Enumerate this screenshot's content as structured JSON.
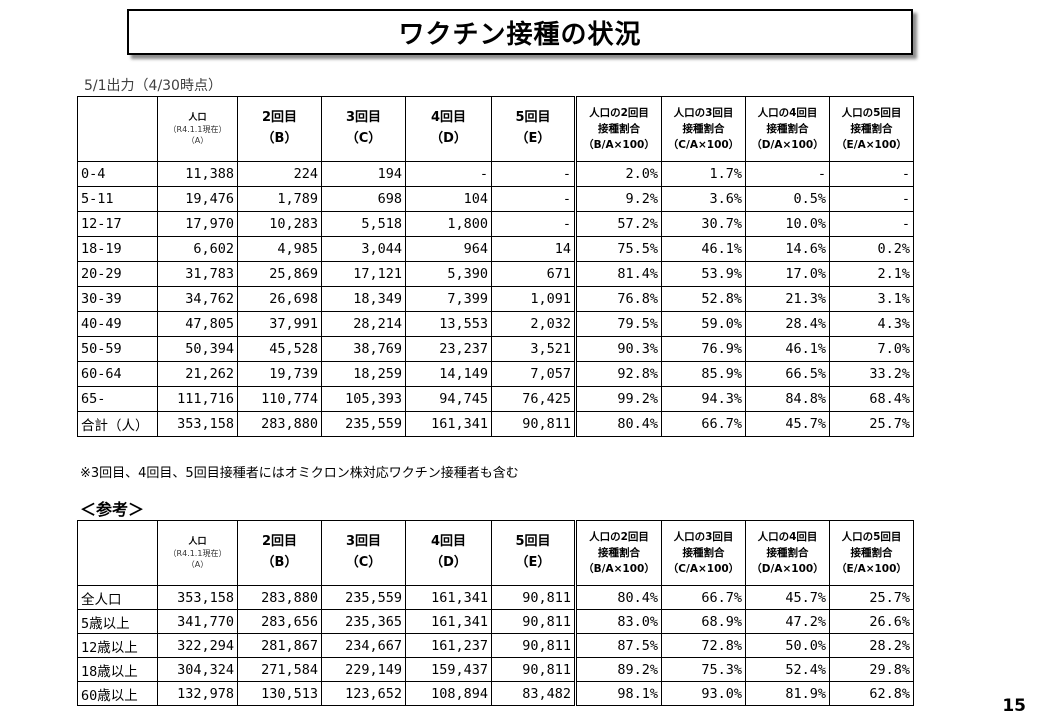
{
  "title": "ワクチン接種の状況",
  "as_of": "5/1出力（4/30時点）",
  "note": "※3回目、4回目、5回目接種者にはオミクロン株対応ワクチン接種者も含む",
  "ref_heading": "＜参考＞",
  "page_number": "15",
  "headers": {
    "pop": [
      "人口",
      "（R4.1.1現在）",
      "（A）"
    ],
    "doses": [
      {
        "l1": "2回目",
        "l2": "（B）"
      },
      {
        "l1": "3回目",
        "l2": "（C）"
      },
      {
        "l1": "4回目",
        "l2": "（D）"
      },
      {
        "l1": "5回目",
        "l2": "（E）"
      }
    ],
    "rates": [
      [
        "人口の2回目",
        "接種割合",
        "（B/A×100）"
      ],
      [
        "人口の3回目",
        "接種割合",
        "（C/A×100）"
      ],
      [
        "人口の4回目",
        "接種割合",
        "（D/A×100）"
      ],
      [
        "人口の5回目",
        "接種割合",
        "（E/A×100）"
      ]
    ]
  },
  "main_rows": [
    [
      "0-4",
      "11,388",
      "224",
      "194",
      "-",
      "-",
      "2.0%",
      "1.7%",
      "-",
      "-"
    ],
    [
      "5-11",
      "19,476",
      "1,789",
      "698",
      "104",
      "-",
      "9.2%",
      "3.6%",
      "0.5%",
      "-"
    ],
    [
      "12-17",
      "17,970",
      "10,283",
      "5,518",
      "1,800",
      "-",
      "57.2%",
      "30.7%",
      "10.0%",
      "-"
    ],
    [
      "18-19",
      "6,602",
      "4,985",
      "3,044",
      "964",
      "14",
      "75.5%",
      "46.1%",
      "14.6%",
      "0.2%"
    ],
    [
      "20-29",
      "31,783",
      "25,869",
      "17,121",
      "5,390",
      "671",
      "81.4%",
      "53.9%",
      "17.0%",
      "2.1%"
    ],
    [
      "30-39",
      "34,762",
      "26,698",
      "18,349",
      "7,399",
      "1,091",
      "76.8%",
      "52.8%",
      "21.3%",
      "3.1%"
    ],
    [
      "40-49",
      "47,805",
      "37,991",
      "28,214",
      "13,553",
      "2,032",
      "79.5%",
      "59.0%",
      "28.4%",
      "4.3%"
    ],
    [
      "50-59",
      "50,394",
      "45,528",
      "38,769",
      "23,237",
      "3,521",
      "90.3%",
      "76.9%",
      "46.1%",
      "7.0%"
    ],
    [
      "60-64",
      "21,262",
      "19,739",
      "18,259",
      "14,149",
      "7,057",
      "92.8%",
      "85.9%",
      "66.5%",
      "33.2%"
    ],
    [
      "65-",
      "111,716",
      "110,774",
      "105,393",
      "94,745",
      "76,425",
      "99.2%",
      "94.3%",
      "84.8%",
      "68.4%"
    ],
    [
      "合計（人）",
      "353,158",
      "283,880",
      "235,559",
      "161,341",
      "90,811",
      "80.4%",
      "66.7%",
      "45.7%",
      "25.7%"
    ]
  ],
  "ref_rows": [
    [
      "全人口",
      "353,158",
      "283,880",
      "235,559",
      "161,341",
      "90,811",
      "80.4%",
      "66.7%",
      "45.7%",
      "25.7%"
    ],
    [
      "5歳以上",
      "341,770",
      "283,656",
      "235,365",
      "161,341",
      "90,811",
      "83.0%",
      "68.9%",
      "47.2%",
      "26.6%"
    ],
    [
      "12歳以上",
      "322,294",
      "281,867",
      "234,667",
      "161,237",
      "90,811",
      "87.5%",
      "72.8%",
      "50.0%",
      "28.2%"
    ],
    [
      "18歳以上",
      "304,324",
      "271,584",
      "229,149",
      "159,437",
      "90,811",
      "89.2%",
      "75.3%",
      "52.4%",
      "29.8%"
    ],
    [
      "60歳以上",
      "132,978",
      "130,513",
      "123,652",
      "108,894",
      "83,482",
      "98.1%",
      "93.0%",
      "81.9%",
      "62.8%"
    ]
  ]
}
